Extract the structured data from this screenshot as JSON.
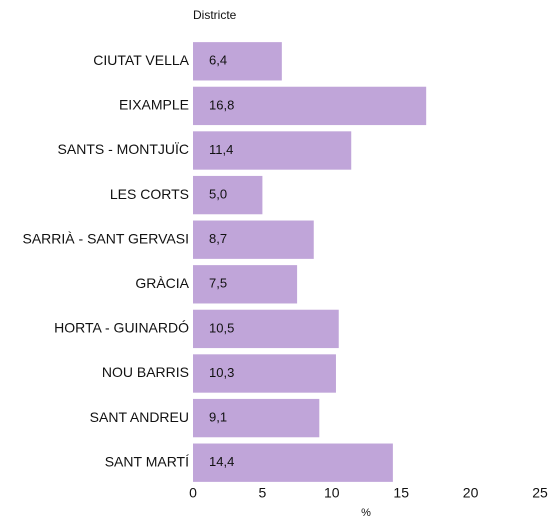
{
  "chart_data": {
    "type": "bar",
    "orientation": "horizontal",
    "y_label": "Districte",
    "x_label": "%",
    "categories": [
      "CIUTAT VELLA",
      "EIXAMPLE",
      "SANTS - MONTJUÏC",
      "LES CORTS",
      "SARRIÀ - SANT GERVASI",
      "GRÀCIA",
      "HORTA - GUINARDÓ",
      "NOU BARRIS",
      "SANT ANDREU",
      "SANT MARTÍ"
    ],
    "values": [
      6.4,
      16.8,
      11.4,
      5.0,
      8.7,
      7.5,
      10.5,
      10.3,
      9.1,
      14.4
    ],
    "value_labels": [
      "6,4",
      "16,8",
      "11,4",
      "5,0",
      "8,7",
      "7,5",
      "10,5",
      "10,3",
      "9,1",
      "14,4"
    ],
    "color": "#c0a5d9",
    "xlim": [
      0,
      25
    ],
    "xticks": [
      0,
      5,
      10,
      15,
      20,
      25
    ],
    "grid": false
  }
}
